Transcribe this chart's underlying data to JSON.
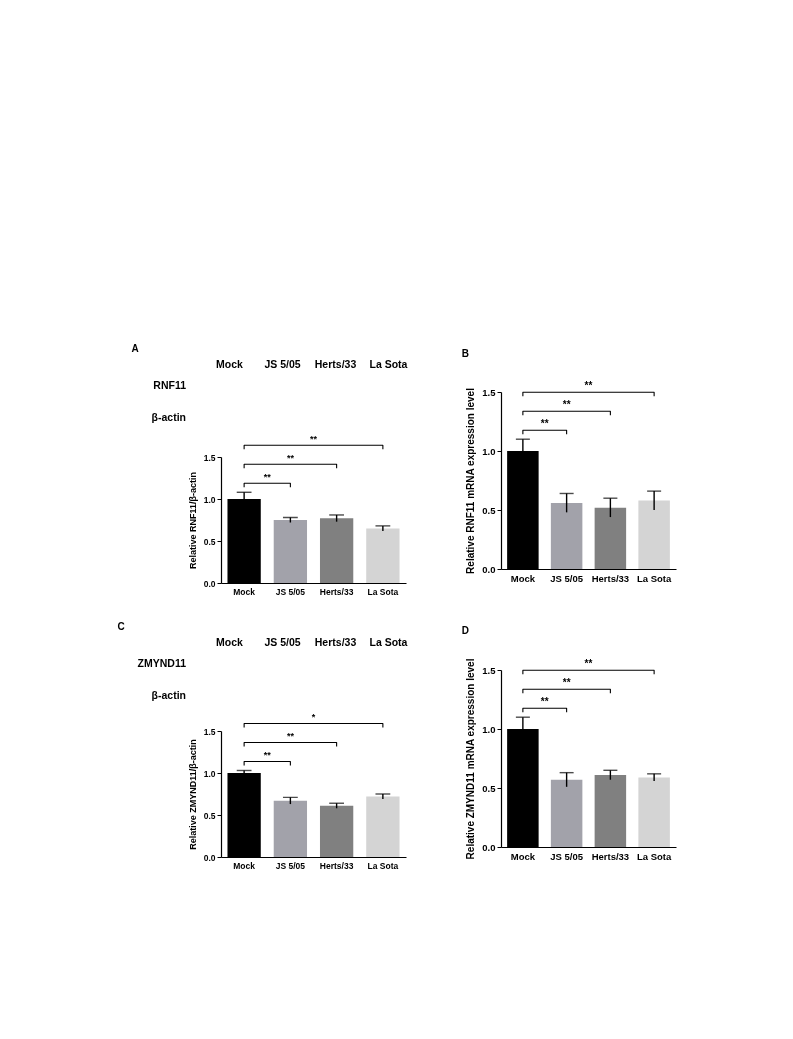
{
  "chart_data": [
    {
      "type": "other",
      "title": "A",
      "categories": [
        "Mock",
        "JS 5/05",
        "Herts/33",
        "La Sota"
      ],
      "y_categories": [
        "RNF11",
        "β-actin"
      ]
    },
    {
      "type": "bar",
      "categories": [
        "Mock",
        "JS 5/05",
        "Herts/33",
        "La Sota"
      ],
      "values": [
        1.0,
        0.75,
        0.77,
        0.65
      ],
      "errors": [
        0.08,
        0.03,
        0.04,
        0.03
      ],
      "colors": [
        "#000000",
        "#a2a2aa",
        "#808080",
        "#d4d4d4"
      ],
      "ylabel": "Relative RNF11/β-actin",
      "ylim": [
        0,
        1.5
      ],
      "yticks": [
        {
          "value": 0,
          "label": "0.0"
        },
        {
          "value": 0.5,
          "label": "0.5"
        },
        {
          "value": 1,
          "label": "1.0"
        },
        {
          "value": 1.5,
          "label": "1.5"
        }
      ],
      "annotations": [
        "**",
        "**",
        "**"
      ]
    },
    {
      "type": "bar",
      "title": "B",
      "categories": [
        "Mock",
        "JS 5/05",
        "Herts/33",
        "La Sota"
      ],
      "values": [
        1.0,
        0.56,
        0.52,
        0.58
      ],
      "errors": [
        0.1,
        0.08,
        0.08,
        0.08
      ],
      "colors": [
        "#000000",
        "#a2a2aa",
        "#808080",
        "#d4d4d4"
      ],
      "ylabel": "Relative RNF11 mRNA expression level",
      "ylim": [
        0,
        1.5
      ],
      "yticks": [
        {
          "value": 0,
          "label": "0.0"
        },
        {
          "value": 0.5,
          "label": "0.5"
        },
        {
          "value": 1,
          "label": "1.0"
        },
        {
          "value": 1.5,
          "label": "1.5"
        }
      ],
      "annotations": [
        "**",
        "**",
        "**"
      ]
    },
    {
      "type": "other",
      "title": "C",
      "categories": [
        "Mock",
        "JS 5/05",
        "Herts/33",
        "La Sota"
      ],
      "y_categories": [
        "ZMYND11",
        "β-actin"
      ]
    },
    {
      "type": "bar",
      "categories": [
        "Mock",
        "JS 5/05",
        "Herts/33",
        "La Sota"
      ],
      "values": [
        1.0,
        0.67,
        0.61,
        0.72
      ],
      "errors": [
        0.03,
        0.04,
        0.03,
        0.03
      ],
      "colors": [
        "#000000",
        "#a2a2aa",
        "#808080",
        "#d4d4d4"
      ],
      "ylabel": "Relative ZMYND11/β-actin",
      "ylim": [
        0,
        1.5
      ],
      "yticks": [
        {
          "value": 0,
          "label": "0.0"
        },
        {
          "value": 0.5,
          "label": "0.5"
        },
        {
          "value": 1,
          "label": "1.0"
        },
        {
          "value": 1.5,
          "label": "1.5"
        }
      ],
      "annotations": [
        "**",
        "**",
        "*"
      ]
    },
    {
      "type": "bar",
      "title": "D",
      "categories": [
        "Mock",
        "JS 5/05",
        "Herts/33",
        "La Sota"
      ],
      "values": [
        1.0,
        0.57,
        0.61,
        0.59
      ],
      "errors": [
        0.1,
        0.06,
        0.04,
        0.03
      ],
      "colors": [
        "#000000",
        "#a2a2aa",
        "#808080",
        "#d4d4d4"
      ],
      "ylabel": "Relative ZMYND11 mRNA expression level",
      "ylim": [
        0,
        1.5
      ],
      "yticks": [
        {
          "value": 0,
          "label": "0.0"
        },
        {
          "value": 0.5,
          "label": "0.5"
        },
        {
          "value": 1,
          "label": "1.0"
        },
        {
          "value": 1.5,
          "label": "1.5"
        }
      ],
      "annotations": [
        "**",
        "**",
        "**"
      ]
    }
  ]
}
